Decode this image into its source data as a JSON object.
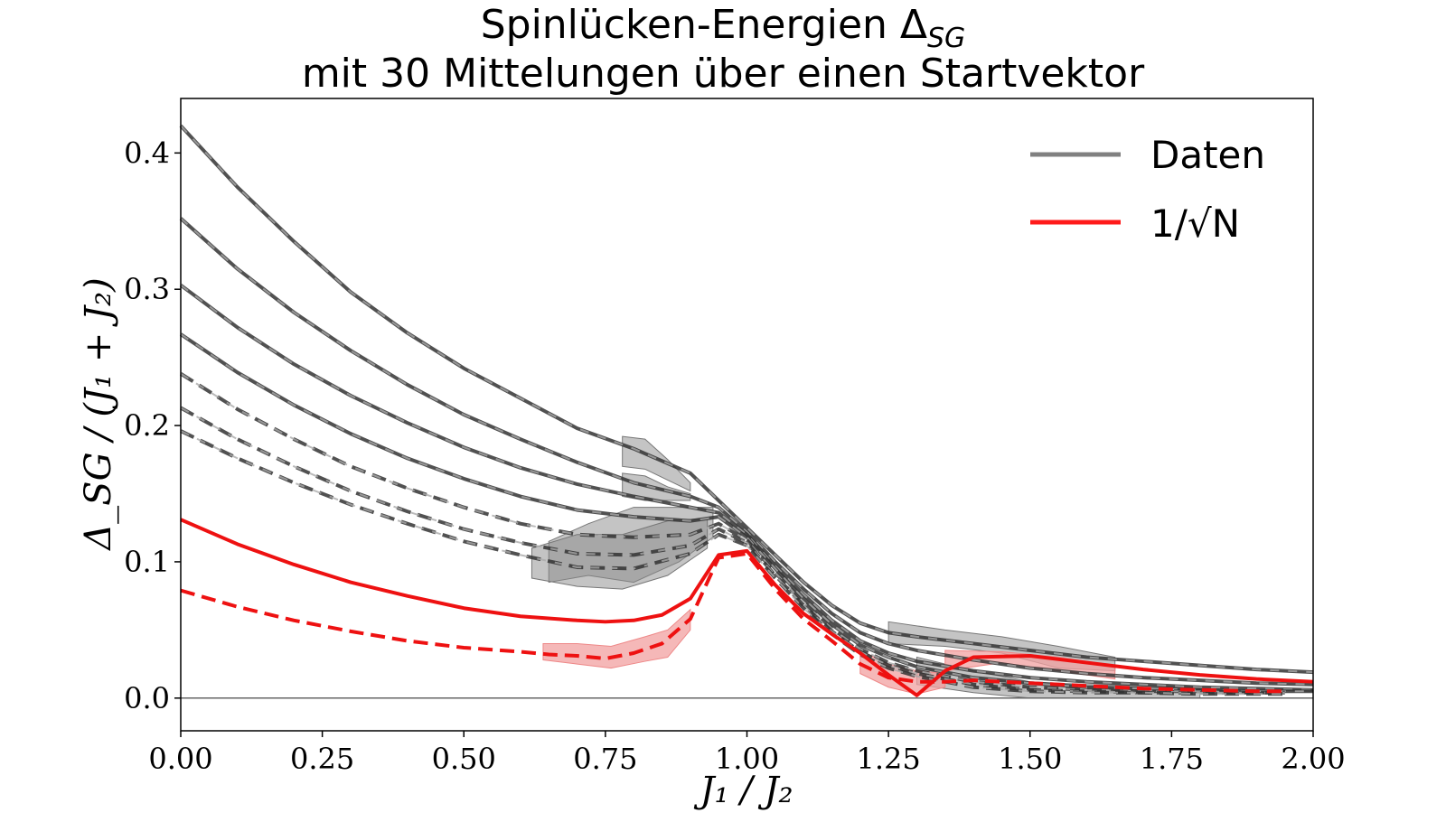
{
  "chart_data": {
    "type": "line",
    "title": "Spinlücken-Energien Δ_SG",
    "title_line1_text": "Spinlücken-Energien Δ",
    "title_line1_sub": "SG",
    "subtitle": "mit 30 Mittelungen über einen Startvektor",
    "xlabel": "J₁ / J₂",
    "ylabel": "Δ_SG / (J₁ + J₂)",
    "xlim": [
      0.0,
      2.0
    ],
    "ylim": [
      -0.024,
      0.44
    ],
    "xticks": [
      "0.00",
      "0.25",
      "0.50",
      "0.75",
      "1.00",
      "1.25",
      "1.50",
      "1.75",
      "2.00"
    ],
    "yticks": [
      "0.0",
      "0.1",
      "0.2",
      "0.3",
      "0.4"
    ],
    "grid": false,
    "legend_position": "top-right",
    "legend": [
      {
        "label": "Daten",
        "color": "#808080"
      },
      {
        "label": "1/√N",
        "color": "#ff1a1a"
      }
    ],
    "colors": {
      "data": "#333333",
      "data_dash": "#aaaaaa",
      "band": "#8a8a8a",
      "red": "#ee1111",
      "red_band": "#f2a0a0"
    },
    "series": [
      {
        "style": "solid",
        "group": "data",
        "x": [
          0.0,
          0.1,
          0.2,
          0.3,
          0.4,
          0.5,
          0.6,
          0.7,
          0.8,
          0.9,
          0.95,
          1.0,
          1.05,
          1.1,
          1.15,
          1.2,
          1.25,
          1.3,
          1.4,
          1.5,
          1.6,
          1.7,
          1.8,
          1.9,
          2.0
        ],
        "y": [
          0.42,
          0.375,
          0.335,
          0.298,
          0.268,
          0.242,
          0.22,
          0.198,
          0.183,
          0.165,
          0.145,
          0.125,
          0.105,
          0.085,
          0.068,
          0.055,
          0.048,
          0.045,
          0.04,
          0.035,
          0.03,
          0.027,
          0.024,
          0.021,
          0.019
        ]
      },
      {
        "style": "solid",
        "group": "data",
        "x": [
          0.0,
          0.1,
          0.2,
          0.3,
          0.4,
          0.5,
          0.6,
          0.7,
          0.8,
          0.9,
          0.95,
          1.0,
          1.05,
          1.1,
          1.15,
          1.2,
          1.25,
          1.3,
          1.4,
          1.5,
          1.6,
          1.7,
          1.8,
          1.9,
          2.0
        ],
        "y": [
          0.352,
          0.315,
          0.283,
          0.255,
          0.23,
          0.208,
          0.19,
          0.173,
          0.158,
          0.148,
          0.14,
          0.122,
          0.1,
          0.08,
          0.062,
          0.048,
          0.04,
          0.035,
          0.028,
          0.022,
          0.018,
          0.015,
          0.013,
          0.011,
          0.01
        ]
      },
      {
        "style": "solid",
        "group": "data",
        "x": [
          0.0,
          0.1,
          0.2,
          0.3,
          0.4,
          0.5,
          0.6,
          0.7,
          0.8,
          0.9,
          0.95,
          1.0,
          1.05,
          1.1,
          1.15,
          1.2,
          1.25,
          1.3,
          1.4,
          1.5,
          1.6,
          1.7,
          1.8,
          1.9,
          2.0
        ],
        "y": [
          0.303,
          0.272,
          0.245,
          0.222,
          0.202,
          0.184,
          0.169,
          0.157,
          0.148,
          0.14,
          0.136,
          0.12,
          0.097,
          0.076,
          0.057,
          0.042,
          0.033,
          0.027,
          0.02,
          0.015,
          0.012,
          0.01,
          0.008,
          0.007,
          0.006
        ]
      },
      {
        "style": "solid",
        "group": "data",
        "x": [
          0.0,
          0.1,
          0.2,
          0.3,
          0.4,
          0.5,
          0.6,
          0.7,
          0.8,
          0.9,
          0.95,
          1.0,
          1.05,
          1.1,
          1.15,
          1.2,
          1.25,
          1.3,
          1.4,
          1.5,
          1.6,
          1.7,
          1.8,
          1.9,
          2.0
        ],
        "y": [
          0.267,
          0.239,
          0.215,
          0.194,
          0.176,
          0.161,
          0.148,
          0.138,
          0.133,
          0.13,
          0.133,
          0.118,
          0.095,
          0.073,
          0.054,
          0.039,
          0.03,
          0.023,
          0.015,
          0.011,
          0.008,
          0.007,
          0.006,
          0.005,
          0.005
        ]
      },
      {
        "style": "dashed",
        "group": "data",
        "x": [
          0.0,
          0.1,
          0.2,
          0.3,
          0.4,
          0.5,
          0.6,
          0.7,
          0.8,
          0.9,
          0.95,
          1.0,
          1.05,
          1.1,
          1.15,
          1.2,
          1.25,
          1.3,
          1.4,
          1.5,
          1.6,
          1.7,
          1.8,
          1.9,
          1.95
        ],
        "y": [
          0.238,
          0.212,
          0.19,
          0.17,
          0.154,
          0.14,
          0.128,
          0.12,
          0.118,
          0.12,
          0.128,
          0.116,
          0.092,
          0.07,
          0.051,
          0.036,
          0.026,
          0.02,
          0.012,
          0.008,
          0.006,
          0.005,
          0.005,
          0.004,
          0.004
        ]
      },
      {
        "style": "dashed",
        "group": "data",
        "x": [
          0.0,
          0.1,
          0.2,
          0.3,
          0.4,
          0.5,
          0.6,
          0.7,
          0.8,
          0.9,
          0.95,
          1.0,
          1.05,
          1.1,
          1.15,
          1.2,
          1.25,
          1.3,
          1.4,
          1.5,
          1.6,
          1.7,
          1.8,
          1.9,
          1.95
        ],
        "y": [
          0.213,
          0.19,
          0.17,
          0.152,
          0.137,
          0.124,
          0.114,
          0.106,
          0.105,
          0.112,
          0.124,
          0.114,
          0.09,
          0.068,
          0.049,
          0.034,
          0.024,
          0.018,
          0.01,
          0.006,
          0.005,
          0.004,
          0.004,
          0.004,
          0.004
        ]
      },
      {
        "style": "dashed",
        "group": "data",
        "x": [
          0.0,
          0.1,
          0.2,
          0.3,
          0.4,
          0.5,
          0.6,
          0.7,
          0.8,
          0.9,
          0.95,
          1.0,
          1.05,
          1.1,
          1.15,
          1.2,
          1.25,
          1.3,
          1.4,
          1.5,
          1.6,
          1.7,
          1.8,
          1.9,
          1.95
        ],
        "y": [
          0.196,
          0.176,
          0.158,
          0.142,
          0.128,
          0.115,
          0.105,
          0.096,
          0.095,
          0.106,
          0.12,
          0.112,
          0.088,
          0.066,
          0.047,
          0.032,
          0.022,
          0.016,
          0.008,
          0.005,
          0.004,
          0.004,
          0.003,
          0.003,
          0.003
        ]
      },
      {
        "style": "solid",
        "group": "fit",
        "x": [
          0.0,
          0.1,
          0.2,
          0.3,
          0.4,
          0.5,
          0.6,
          0.7,
          0.75,
          0.8,
          0.85,
          0.9,
          0.95,
          1.0,
          1.05,
          1.1,
          1.15,
          1.2,
          1.25,
          1.3,
          1.35,
          1.4,
          1.5,
          1.6,
          1.7,
          1.8,
          1.9,
          2.0
        ],
        "y": [
          0.131,
          0.113,
          0.098,
          0.085,
          0.075,
          0.066,
          0.06,
          0.057,
          0.056,
          0.057,
          0.061,
          0.073,
          0.105,
          0.108,
          0.083,
          0.062,
          0.047,
          0.033,
          0.017,
          0.002,
          0.02,
          0.03,
          0.031,
          0.026,
          0.021,
          0.017,
          0.014,
          0.012
        ]
      },
      {
        "style": "dashed",
        "group": "fit",
        "x": [
          0.0,
          0.1,
          0.2,
          0.3,
          0.4,
          0.5,
          0.6,
          0.65,
          0.7,
          0.75,
          0.8,
          0.85,
          0.9,
          0.95,
          1.0,
          1.05,
          1.1,
          1.15,
          1.2,
          1.25,
          1.3,
          1.35,
          1.4,
          1.5,
          1.6,
          1.7,
          1.8,
          1.9,
          1.95
        ],
        "y": [
          0.079,
          0.067,
          0.057,
          0.049,
          0.042,
          0.037,
          0.034,
          0.032,
          0.031,
          0.029,
          0.033,
          0.04,
          0.058,
          0.103,
          0.106,
          0.08,
          0.058,
          0.042,
          0.025,
          0.015,
          0.012,
          0.012,
          0.013,
          0.011,
          0.009,
          0.007,
          0.006,
          0.005,
          0.005
        ]
      }
    ],
    "bands": [
      {
        "group": "data",
        "x": [
          0.78,
          0.82,
          0.86,
          0.9
        ],
        "upper": [
          0.192,
          0.19,
          0.175,
          0.158
        ],
        "lower": [
          0.17,
          0.168,
          0.16,
          0.152
        ]
      },
      {
        "group": "data",
        "x": [
          0.78,
          0.82,
          0.86,
          0.9
        ],
        "upper": [
          0.165,
          0.163,
          0.155,
          0.15
        ],
        "lower": [
          0.148,
          0.145,
          0.145,
          0.145
        ]
      },
      {
        "group": "data",
        "x": [
          0.65,
          0.72,
          0.8,
          0.88,
          0.94
        ],
        "upper": [
          0.115,
          0.128,
          0.14,
          0.14,
          0.14
        ],
        "lower": [
          0.085,
          0.09,
          0.085,
          0.1,
          0.118
        ]
      },
      {
        "group": "data",
        "x": [
          0.62,
          0.7,
          0.78,
          0.86,
          0.93
        ],
        "upper": [
          0.11,
          0.12,
          0.12,
          0.13,
          0.132
        ],
        "lower": [
          0.088,
          0.082,
          0.08,
          0.09,
          0.11
        ]
      },
      {
        "group": "data",
        "x": [
          1.25,
          1.35,
          1.45,
          1.55,
          1.65
        ],
        "upper": [
          0.056,
          0.05,
          0.045,
          0.038,
          0.03
        ],
        "lower": [
          0.04,
          0.038,
          0.033,
          0.022,
          0.02
        ]
      },
      {
        "group": "data",
        "x": [
          1.3,
          1.4,
          1.5,
          1.6,
          1.7,
          1.8
        ],
        "upper": [
          0.03,
          0.02,
          0.012,
          0.01,
          0.009,
          0.008
        ],
        "lower": [
          0.01,
          0.004,
          0.0,
          0.0,
          0.0,
          0.0
        ]
      },
      {
        "group": "fit",
        "x": [
          0.64,
          0.7,
          0.76,
          0.82,
          0.86,
          0.9
        ],
        "upper": [
          0.04,
          0.04,
          0.038,
          0.045,
          0.05,
          0.065
        ],
        "lower": [
          0.028,
          0.025,
          0.022,
          0.027,
          0.03,
          0.05
        ]
      },
      {
        "group": "fit",
        "x": [
          1.2,
          1.25,
          1.3,
          1.35
        ],
        "upper": [
          0.035,
          0.025,
          0.02,
          0.018
        ],
        "lower": [
          0.018,
          0.008,
          0.003,
          0.008
        ]
      },
      {
        "group": "fit",
        "x": [
          1.35,
          1.45,
          1.55,
          1.65
        ],
        "upper": [
          0.035,
          0.034,
          0.03,
          0.024
        ],
        "lower": [
          0.02,
          0.026,
          0.02,
          0.014
        ]
      }
    ]
  }
}
